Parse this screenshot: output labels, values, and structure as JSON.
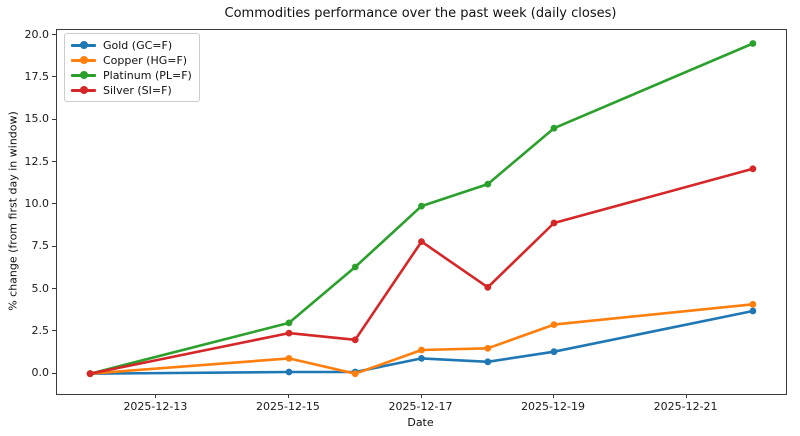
{
  "figure": {
    "background_color": "#ffffff",
    "spine_color": "#3a3a3a"
  },
  "chart_data": {
    "type": "line",
    "title": "Commodities performance over the past week (daily closes)",
    "xlabel": "Date",
    "ylabel": "% change (from first day in window)",
    "grid": false,
    "legend_position": "upper-left",
    "x_dates": [
      "2025-12-12",
      "2025-12-15",
      "2025-12-16",
      "2025-12-17",
      "2025-12-18",
      "2025-12-19",
      "2025-12-22"
    ],
    "x_day_offsets": [
      0,
      3,
      4,
      5,
      6,
      7,
      10
    ],
    "xlim_days": [
      -0.5,
      10.5
    ],
    "ylim": [
      -1.2,
      20.3
    ],
    "x_ticks": [
      {
        "day": 1,
        "label": "2025-12-13"
      },
      {
        "day": 3,
        "label": "2025-12-15"
      },
      {
        "day": 5,
        "label": "2025-12-17"
      },
      {
        "day": 7,
        "label": "2025-12-19"
      },
      {
        "day": 9,
        "label": "2025-12-21"
      }
    ],
    "y_ticks": [
      {
        "value": 0.0,
        "label": "0.0"
      },
      {
        "value": 2.5,
        "label": "2.5"
      },
      {
        "value": 5.0,
        "label": "5.0"
      },
      {
        "value": 7.5,
        "label": "7.5"
      },
      {
        "value": 10.0,
        "label": "10.0"
      },
      {
        "value": 12.5,
        "label": "12.5"
      },
      {
        "value": 15.0,
        "label": "15.0"
      },
      {
        "value": 17.5,
        "label": "17.5"
      },
      {
        "value": 20.0,
        "label": "20.0"
      }
    ],
    "series": [
      {
        "name": "Gold (GC=F)",
        "color": "#1f77b4",
        "values": [
          0.0,
          0.1,
          0.1,
          0.9,
          0.7,
          1.3,
          3.7
        ]
      },
      {
        "name": "Copper (HG=F)",
        "color": "#ff7f0e",
        "values": [
          0.0,
          0.9,
          0.0,
          1.4,
          1.5,
          2.9,
          4.1
        ]
      },
      {
        "name": "Platinum (PL=F)",
        "color": "#2ca02c",
        "values": [
          0.0,
          3.0,
          6.3,
          9.9,
          11.2,
          14.5,
          19.5
        ]
      },
      {
        "name": "Silver (SI=F)",
        "color": "#d62728",
        "values": [
          0.0,
          2.4,
          2.0,
          7.8,
          5.1,
          8.9,
          12.1
        ]
      }
    ]
  }
}
